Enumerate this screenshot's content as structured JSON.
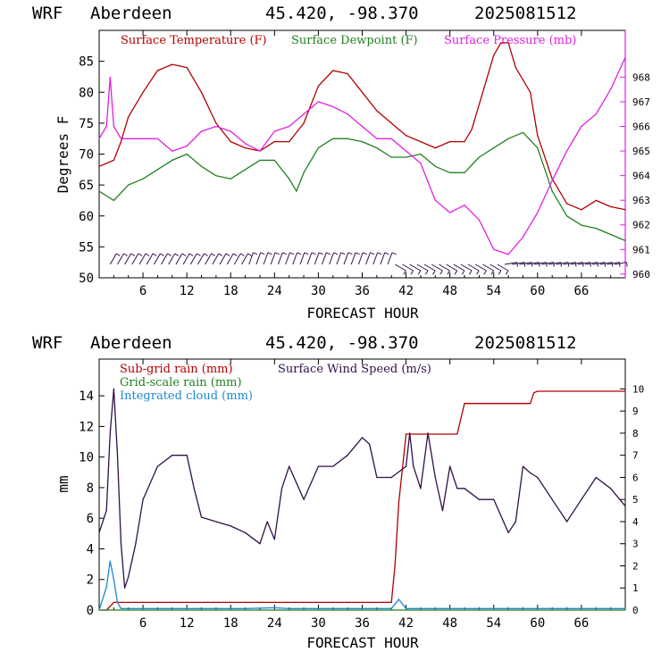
{
  "top": {
    "header": {
      "model": "WRF",
      "site": "Aberdeen",
      "coords": "45.420, -98.370",
      "run": "2025081512"
    },
    "legend": [
      {
        "label": "Surface Temperature (F)",
        "color": "#b00000"
      },
      {
        "label": "Surface Dewpoint (F)",
        "color": "#208020"
      },
      {
        "label": "Surface Pressure (mb)",
        "color": "#e020e0"
      }
    ],
    "ylabel": "Degrees F",
    "xlabel": "FORECAST HOUR"
  },
  "bottom": {
    "header": {
      "model": "WRF",
      "site": "Aberdeen",
      "coords": "45.420, -98.370",
      "run": "2025081512"
    },
    "legend": [
      {
        "label": "Sub-grid rain (mm)",
        "color": "#b00000"
      },
      {
        "label": "Grid-scale rain (mm)",
        "color": "#208020"
      },
      {
        "label": "Integrated cloud (mm)",
        "color": "#1a8ad0"
      },
      {
        "label": "Surface Wind Speed (m/s)",
        "color": "#30104a"
      }
    ],
    "ylabel": "mm",
    "xlabel": "FORECAST HOUR"
  },
  "chart_data": [
    {
      "type": "line",
      "x_ticks": [
        6,
        12,
        18,
        24,
        30,
        36,
        42,
        48,
        54,
        60,
        66
      ],
      "xlim": [
        0,
        72
      ],
      "ylim": [
        50,
        90
      ],
      "y_ticks": [
        50,
        55,
        60,
        65,
        70,
        75,
        80,
        85
      ],
      "y2lim": [
        959.85,
        969.9
      ],
      "y2_ticks": [
        960,
        961,
        962,
        963,
        964,
        965,
        966,
        967,
        968
      ],
      "series": [
        {
          "name": "Surface Temperature (F)",
          "axis": "left",
          "color": "#b00000",
          "x": [
            0,
            2,
            3,
            4,
            6,
            8,
            10,
            12,
            14,
            16,
            18,
            20,
            22,
            24,
            26,
            28,
            30,
            32,
            34,
            36,
            38,
            40,
            42,
            44,
            46,
            48,
            50,
            51,
            52,
            54,
            55,
            56,
            57,
            58,
            59,
            60,
            62,
            64,
            66,
            68,
            70,
            72
          ],
          "y": [
            68,
            69,
            72,
            76,
            80,
            83.5,
            84.5,
            84,
            80,
            75,
            72,
            71,
            70.5,
            72,
            72,
            75,
            81,
            83.5,
            83,
            80,
            77,
            75,
            73,
            72,
            71,
            72,
            72,
            74,
            78,
            86,
            88,
            88,
            84,
            82,
            80,
            73,
            66,
            62,
            61,
            62.5,
            61.5,
            61
          ]
        },
        {
          "name": "Surface Dewpoint (F)",
          "axis": "left",
          "color": "#208020",
          "x": [
            0,
            2,
            4,
            6,
            8,
            10,
            12,
            14,
            16,
            18,
            20,
            22,
            24,
            26,
            27,
            28,
            30,
            32,
            34,
            36,
            38,
            40,
            42,
            44,
            46,
            48,
            50,
            52,
            54,
            56,
            58,
            60,
            62,
            64,
            66,
            68,
            70,
            72
          ],
          "y": [
            64,
            62.5,
            65,
            66,
            67.5,
            69,
            70,
            68,
            66.5,
            66,
            67.5,
            69,
            69,
            66,
            64,
            67,
            71,
            72.5,
            72.5,
            72,
            71,
            69.5,
            69.5,
            70,
            68,
            67,
            67,
            69.5,
            71,
            72.5,
            73.5,
            71,
            64,
            60,
            58.5,
            58,
            57,
            56
          ]
        },
        {
          "name": "Surface Pressure (mb)",
          "axis": "right",
          "color": "#e020e0",
          "x": [
            0,
            1,
            1.5,
            2,
            3,
            4,
            6,
            8,
            10,
            12,
            14,
            16,
            18,
            20,
            22,
            24,
            26,
            28,
            30,
            32,
            34,
            36,
            38,
            40,
            42,
            44,
            46,
            48,
            50,
            52,
            54,
            56,
            58,
            60,
            62,
            64,
            66,
            68,
            70,
            72
          ],
          "y": [
            965.5,
            966,
            968,
            966,
            965.5,
            965.5,
            965.5,
            965.5,
            965,
            965.2,
            965.8,
            966,
            965.8,
            965.3,
            965,
            965.8,
            966,
            966.5,
            967,
            966.8,
            966.5,
            966,
            965.5,
            965.5,
            965,
            964.5,
            963,
            962.5,
            962.8,
            962.2,
            961,
            960.8,
            961.5,
            962.5,
            963.8,
            965,
            966,
            966.5,
            967.5,
            968.8
          ]
        }
      ]
    },
    {
      "type": "line",
      "x_ticks": [
        6,
        12,
        18,
        24,
        30,
        36,
        42,
        48,
        54,
        60,
        66
      ],
      "xlim": [
        0,
        72
      ],
      "ylim": [
        0,
        16.4
      ],
      "y_ticks": [
        0,
        2,
        4,
        6,
        8,
        10,
        12,
        14
      ],
      "y2lim": [
        0,
        11.35
      ],
      "y2_ticks": [
        0,
        1,
        2,
        3,
        4,
        5,
        6,
        7,
        8,
        9,
        10
      ],
      "series": [
        {
          "name": "Sub-grid rain (mm)",
          "axis": "left",
          "color": "#b00000",
          "x": [
            0,
            1,
            2,
            40,
            40.5,
            41,
            42,
            49,
            49.5,
            50,
            59,
            59.5,
            60,
            72
          ],
          "y": [
            0,
            0,
            0.5,
            0.5,
            3,
            7,
            11.5,
            11.5,
            12.5,
            13.5,
            13.5,
            14.2,
            14.3,
            14.3
          ]
        },
        {
          "name": "Grid-scale rain (mm)",
          "axis": "left",
          "color": "#208020",
          "x": [
            0,
            72
          ],
          "y": [
            0,
            0
          ]
        },
        {
          "name": "Integrated cloud (mm)",
          "axis": "left",
          "color": "#1a8ad0",
          "x": [
            0,
            1,
            1.5,
            2,
            2.5,
            3,
            4,
            20,
            24,
            26,
            40,
            41,
            42,
            44,
            72
          ],
          "y": [
            0,
            1.5,
            3.2,
            2,
            0.5,
            0.1,
            0.1,
            0.1,
            0.15,
            0.1,
            0.1,
            0.7,
            0.1,
            0.1,
            0.1
          ]
        },
        {
          "name": "Surface Wind Speed (m/s)",
          "axis": "right",
          "color": "#30104a",
          "x": [
            0,
            1,
            1.5,
            2,
            2.5,
            3,
            3.5,
            4,
            5,
            6,
            8,
            10,
            12,
            13,
            14,
            16,
            18,
            20,
            22,
            23,
            24,
            25,
            26,
            28,
            30,
            32,
            34,
            36,
            37,
            38,
            40,
            42,
            42.5,
            43,
            44,
            45,
            46,
            47,
            48,
            49,
            50,
            52,
            54,
            56,
            57,
            58,
            59,
            60,
            62,
            64,
            66,
            68,
            70,
            72
          ],
          "y": [
            3.5,
            4.5,
            8,
            10,
            7,
            3,
            1,
            1.5,
            3,
            5,
            6.5,
            7,
            7,
            5.5,
            4.2,
            4,
            3.8,
            3.5,
            3,
            4,
            3.2,
            5.5,
            6.5,
            5,
            6.5,
            6.5,
            7,
            7.8,
            7.5,
            6,
            6,
            6.5,
            8,
            6.5,
            5.5,
            8,
            6,
            4.5,
            6.5,
            5.5,
            5.5,
            5,
            5,
            3.5,
            4,
            6.5,
            6.2,
            6,
            5,
            4,
            5,
            6,
            5.5,
            4.7
          ]
        }
      ]
    }
  ]
}
